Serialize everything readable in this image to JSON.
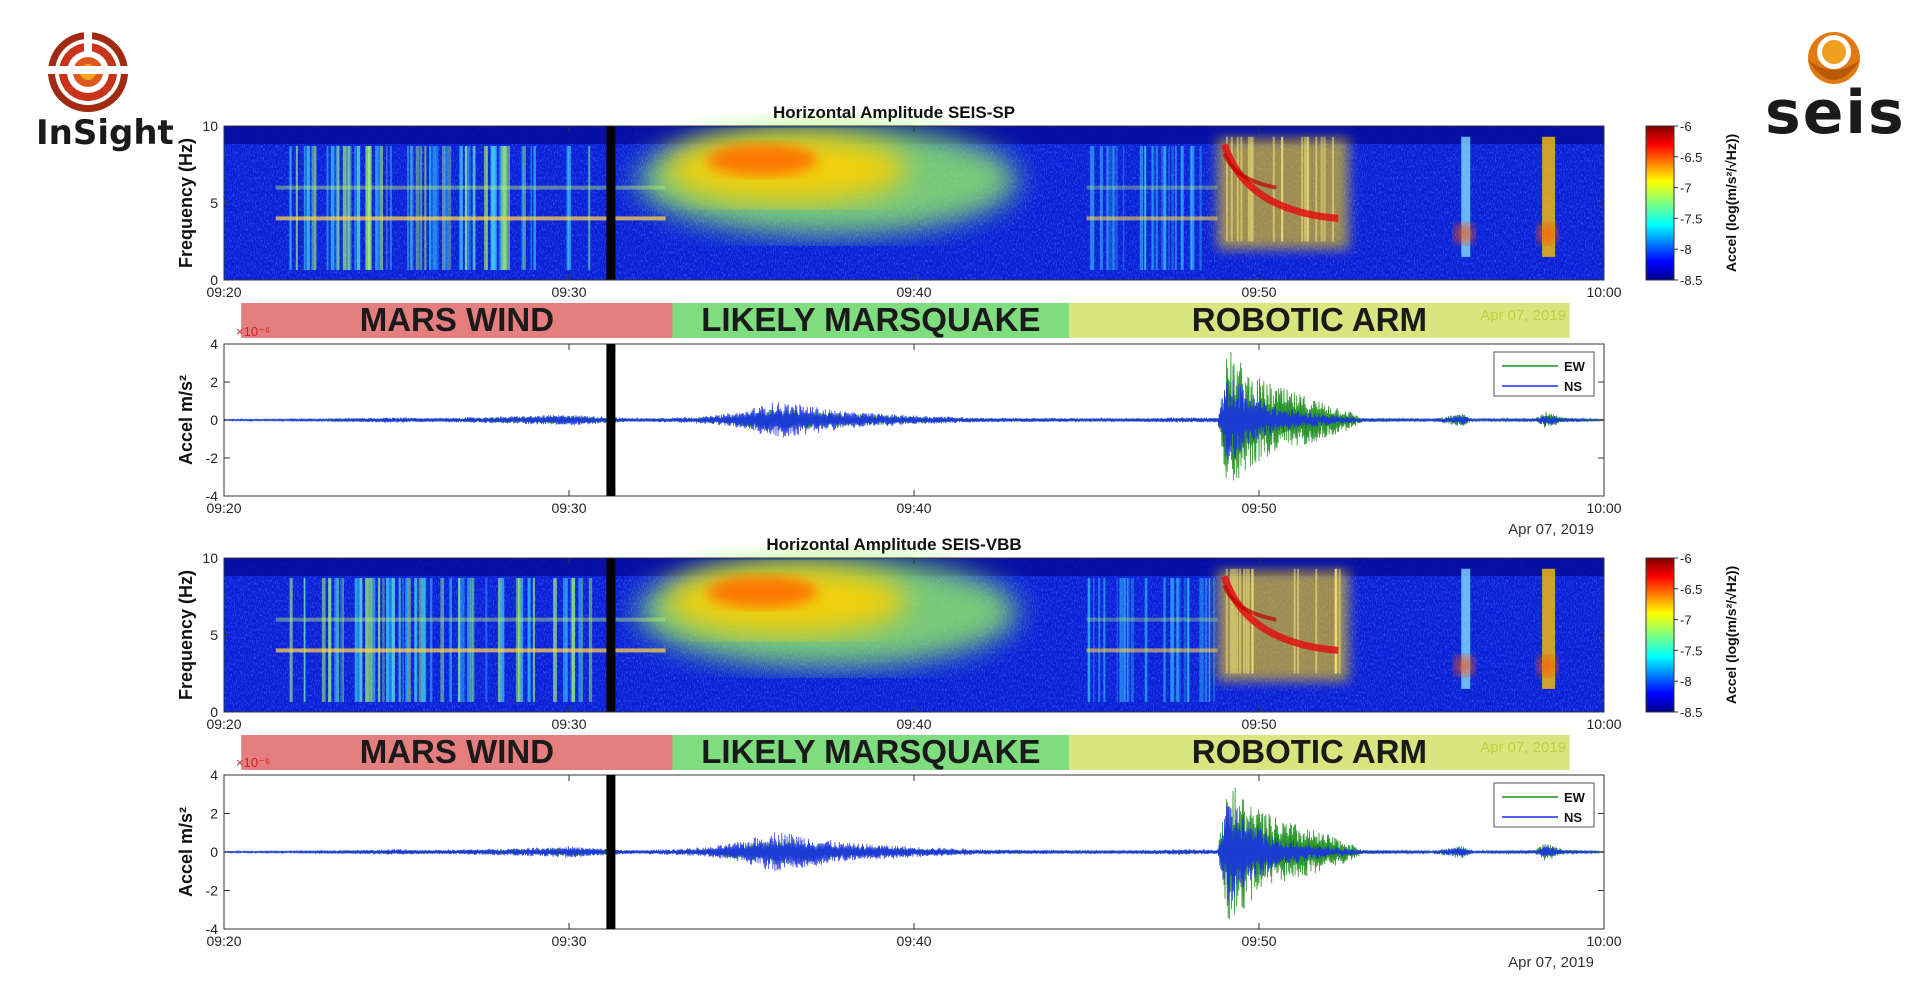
{
  "logos": {
    "left": {
      "text": "InSight",
      "icon": "insight-mission-logo"
    },
    "right": {
      "text": "seis",
      "icon": "seis-instrument-logo"
    }
  },
  "colors": {
    "wind_band": "#e57f7f",
    "quake_band": "#7fdc7f",
    "arm_band": "#d9e67f",
    "ew_trace": "#1f8f1f",
    "ns_trace": "#1a2cf0",
    "date_on_band": "#b8d23a",
    "exponent_label": "#d42020"
  },
  "chart_data": [
    {
      "type": "heatmap",
      "title": "Horizontal Amplitude SEIS-SP",
      "ylabel": "Frequency (Hz)",
      "ylim": [
        0,
        10
      ],
      "yticks": [
        "0",
        "5",
        "10"
      ],
      "xticks": [
        "09:20",
        "09:30",
        "09:40",
        "09:50",
        "10:00"
      ],
      "x_range_minutes": [
        0,
        40
      ],
      "blackout_minute": 11.2,
      "colorbar": {
        "label": "Accel (log(m/s²/√Hz))",
        "range": [
          -8.5,
          -6
        ],
        "ticks": [
          "-6",
          "-6.5",
          "-7",
          "-7.5",
          "-8",
          "-8.5"
        ]
      },
      "bands": [
        {
          "label": "MARS WIND",
          "start_minute": 0.5,
          "end_minute": 13.0,
          "color": "#e57f7f"
        },
        {
          "label": "LIKELY MARSQUAKE",
          "start_minute": 13.0,
          "end_minute": 24.5,
          "color": "#7fdc7f"
        },
        {
          "label": "ROBOTIC ARM",
          "start_minute": 24.5,
          "end_minute": 39.0,
          "color": "#d9e67f"
        }
      ],
      "band_date": "Apr 07, 2019"
    },
    {
      "type": "line",
      "ylabel": "Accel m/s²",
      "exponent": "×10⁻⁶",
      "ylim": [
        -4,
        4
      ],
      "yticks": [
        "4",
        "2",
        "0",
        "-2",
        "-4"
      ],
      "xticks": [
        "09:20",
        "09:30",
        "09:40",
        "09:50",
        "10:00"
      ],
      "x_range_minutes": [
        0,
        40
      ],
      "blackout_minute": 11.2,
      "date": "Apr 07, 2019",
      "legend": {
        "placement": "top-right",
        "entries": [
          "EW",
          "NS"
        ]
      },
      "series": [
        {
          "name": "EW",
          "color": "#1f8f1f",
          "envelope": [
            [
              0,
              0.03
            ],
            [
              3,
              0.05
            ],
            [
              5,
              0.12
            ],
            [
              6,
              0.08
            ],
            [
              8,
              0.15
            ],
            [
              10,
              0.25
            ],
            [
              11,
              0.15
            ],
            [
              12,
              0.06
            ],
            [
              14,
              0.15
            ],
            [
              15,
              0.35
            ],
            [
              16,
              0.65
            ],
            [
              17,
              0.5
            ],
            [
              18,
              0.35
            ],
            [
              20,
              0.2
            ],
            [
              22,
              0.1
            ],
            [
              24,
              0.08
            ],
            [
              26,
              0.06
            ],
            [
              28,
              0.12
            ],
            [
              28.8,
              0.1
            ],
            [
              29.1,
              3.8
            ],
            [
              29.8,
              2.4
            ],
            [
              30.5,
              1.8
            ],
            [
              31.5,
              1.2
            ],
            [
              32.5,
              0.6
            ],
            [
              33,
              0.12
            ],
            [
              35,
              0.05
            ],
            [
              35.9,
              0.35
            ],
            [
              36.2,
              0.05
            ],
            [
              38,
              0.1
            ],
            [
              38.3,
              0.45
            ],
            [
              38.8,
              0.15
            ],
            [
              40,
              0.03
            ]
          ]
        },
        {
          "name": "NS",
          "color": "#1a2cf0",
          "envelope": [
            [
              0,
              0.04
            ],
            [
              3,
              0.06
            ],
            [
              5,
              0.15
            ],
            [
              6,
              0.1
            ],
            [
              8,
              0.18
            ],
            [
              10,
              0.3
            ],
            [
              11,
              0.18
            ],
            [
              12,
              0.08
            ],
            [
              14,
              0.2
            ],
            [
              15,
              0.45
            ],
            [
              16,
              1.0
            ],
            [
              17,
              0.75
            ],
            [
              18,
              0.45
            ],
            [
              20,
              0.25
            ],
            [
              22,
              0.12
            ],
            [
              24,
              0.1
            ],
            [
              26,
              0.08
            ],
            [
              28,
              0.15
            ],
            [
              28.8,
              0.12
            ],
            [
              29.1,
              2.4
            ],
            [
              29.8,
              1.4
            ],
            [
              30.5,
              0.7
            ],
            [
              31.5,
              0.4
            ],
            [
              32.5,
              0.2
            ],
            [
              33,
              0.1
            ],
            [
              35,
              0.05
            ],
            [
              35.9,
              0.3
            ],
            [
              36.2,
              0.05
            ],
            [
              38,
              0.08
            ],
            [
              38.3,
              0.35
            ],
            [
              38.8,
              0.1
            ],
            [
              40,
              0.03
            ]
          ]
        }
      ]
    },
    {
      "type": "heatmap",
      "title": "Horizontal Amplitude SEIS-VBB",
      "ylabel": "Frequency (Hz)",
      "ylim": [
        0,
        10
      ],
      "yticks": [
        "0",
        "5",
        "10"
      ],
      "xticks": [
        "09:20",
        "09:30",
        "09:40",
        "09:50",
        "10:00"
      ],
      "x_range_minutes": [
        0,
        40
      ],
      "blackout_minute": 11.2,
      "colorbar": {
        "label": "Accel (log(m/s²/√Hz))",
        "range": [
          -8.5,
          -6
        ],
        "ticks": [
          "-6",
          "-6.5",
          "-7",
          "-7.5",
          "-8",
          "-8.5"
        ]
      },
      "bands": [
        {
          "label": "MARS WIND",
          "start_minute": 0.5,
          "end_minute": 13.0,
          "color": "#e57f7f"
        },
        {
          "label": "LIKELY MARSQUAKE",
          "start_minute": 13.0,
          "end_minute": 24.5,
          "color": "#7fdc7f"
        },
        {
          "label": "ROBOTIC ARM",
          "start_minute": 24.5,
          "end_minute": 39.0,
          "color": "#d9e67f"
        }
      ],
      "band_date": "Apr 07, 2019"
    },
    {
      "type": "line",
      "ylabel": "Accel m/s²",
      "exponent": "×10⁻⁶",
      "ylim": [
        -4,
        4
      ],
      "yticks": [
        "4",
        "2",
        "0",
        "-2",
        "-4"
      ],
      "xticks": [
        "09:20",
        "09:30",
        "09:40",
        "09:50",
        "10:00"
      ],
      "x_range_minutes": [
        0,
        40
      ],
      "blackout_minute": 11.2,
      "date": "Apr 07, 2019",
      "legend": {
        "placement": "top-right",
        "entries": [
          "EW",
          "NS"
        ]
      },
      "series": [
        {
          "name": "EW",
          "color": "#1f8f1f",
          "envelope": [
            [
              0,
              0.03
            ],
            [
              3,
              0.05
            ],
            [
              5,
              0.12
            ],
            [
              6,
              0.08
            ],
            [
              8,
              0.15
            ],
            [
              10,
              0.25
            ],
            [
              11,
              0.15
            ],
            [
              12,
              0.06
            ],
            [
              14,
              0.18
            ],
            [
              15,
              0.4
            ],
            [
              16,
              0.7
            ],
            [
              17,
              0.55
            ],
            [
              18,
              0.35
            ],
            [
              20,
              0.2
            ],
            [
              22,
              0.1
            ],
            [
              24,
              0.08
            ],
            [
              26,
              0.06
            ],
            [
              28,
              0.12
            ],
            [
              28.8,
              0.1
            ],
            [
              29.1,
              3.8
            ],
            [
              29.8,
              2.5
            ],
            [
              30.5,
              1.8
            ],
            [
              31.5,
              1.2
            ],
            [
              32.5,
              0.6
            ],
            [
              33,
              0.12
            ],
            [
              35,
              0.05
            ],
            [
              35.9,
              0.35
            ],
            [
              36.2,
              0.05
            ],
            [
              38,
              0.1
            ],
            [
              38.3,
              0.5
            ],
            [
              38.8,
              0.15
            ],
            [
              40,
              0.03
            ]
          ]
        },
        {
          "name": "NS",
          "color": "#1a2cf0",
          "envelope": [
            [
              0,
              0.04
            ],
            [
              3,
              0.06
            ],
            [
              5,
              0.15
            ],
            [
              6,
              0.1
            ],
            [
              8,
              0.18
            ],
            [
              10,
              0.3
            ],
            [
              11,
              0.18
            ],
            [
              12,
              0.08
            ],
            [
              14,
              0.25
            ],
            [
              15,
              0.55
            ],
            [
              16,
              1.1
            ],
            [
              17,
              0.8
            ],
            [
              18,
              0.5
            ],
            [
              20,
              0.28
            ],
            [
              22,
              0.14
            ],
            [
              24,
              0.1
            ],
            [
              26,
              0.08
            ],
            [
              28,
              0.15
            ],
            [
              28.8,
              0.12
            ],
            [
              29.1,
              2.8
            ],
            [
              29.8,
              1.6
            ],
            [
              30.5,
              0.8
            ],
            [
              31.5,
              0.45
            ],
            [
              32.5,
              0.2
            ],
            [
              33,
              0.1
            ],
            [
              35,
              0.05
            ],
            [
              35.9,
              0.3
            ],
            [
              36.2,
              0.05
            ],
            [
              38,
              0.08
            ],
            [
              38.3,
              0.4
            ],
            [
              38.8,
              0.1
            ],
            [
              40,
              0.03
            ]
          ]
        }
      ]
    }
  ]
}
